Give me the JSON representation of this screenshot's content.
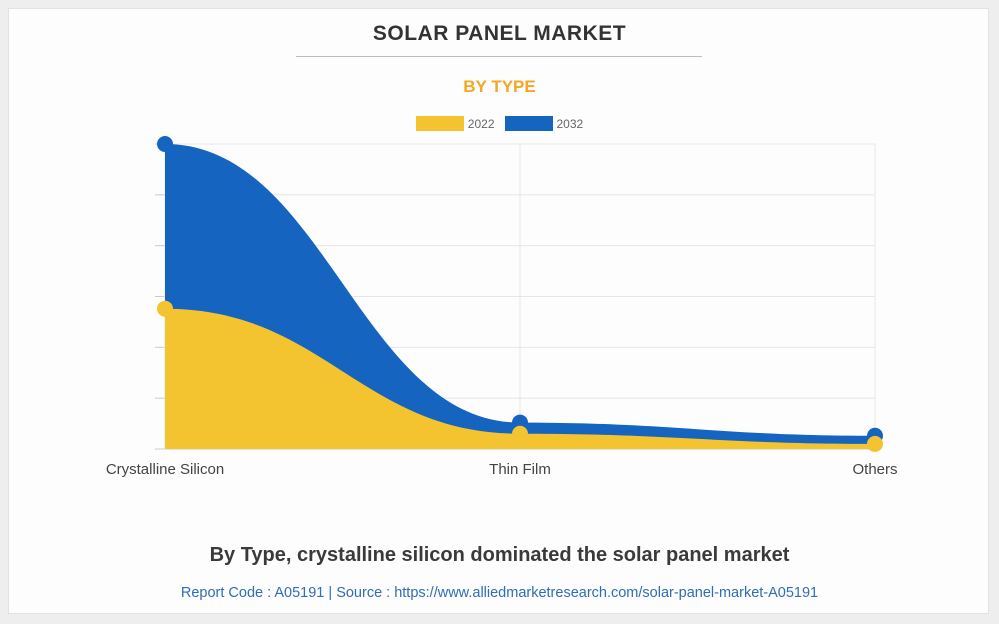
{
  "chart_data": {
    "type": "area",
    "title": "SOLAR PANEL MARKET",
    "subtitle": "BY TYPE",
    "categories": [
      "Crystalline Silicon",
      "Thin Film",
      "Others"
    ],
    "series": [
      {
        "name": "2022",
        "values": [
          138,
          15,
          5
        ],
        "color": "#f4c430"
      },
      {
        "name": "2032",
        "values": [
          300,
          26,
          13
        ],
        "color": "#1565c0"
      }
    ],
    "ylim": [
      0,
      300
    ],
    "grid": true,
    "legend_position": "top",
    "stacked_visual": true
  },
  "caption": "By Type, crystalline silicon dominated the solar panel market",
  "source_line": "Report Code : A05191  |  Source : https://www.alliedmarketresearch.com/solar-panel-market-A05191"
}
